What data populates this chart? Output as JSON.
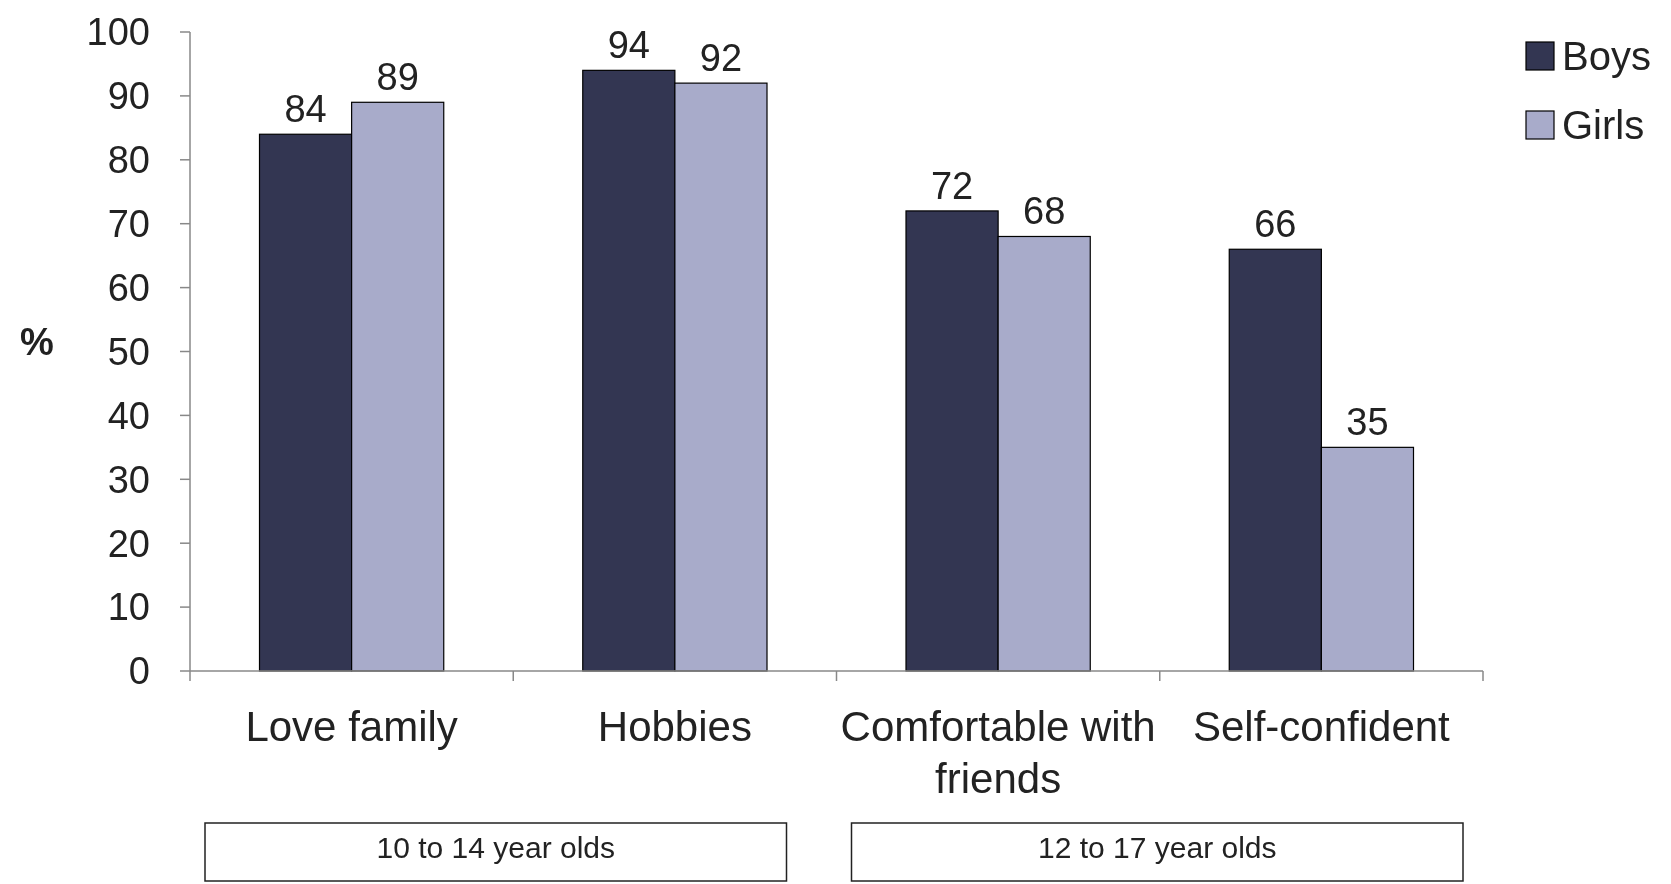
{
  "chart_data": {
    "type": "bar",
    "ylabel": "%",
    "categories": [
      "Love family",
      "Hobbies",
      "Comfortable with friends",
      "Self-confident"
    ],
    "series": [
      {
        "name": "Boys",
        "color": "#333652",
        "values": [
          84,
          94,
          72,
          66
        ]
      },
      {
        "name": "Girls",
        "color": "#a8abca",
        "values": [
          89,
          92,
          68,
          35
        ]
      }
    ],
    "ylim": [
      0,
      100
    ],
    "yticks": [
      0,
      10,
      20,
      30,
      40,
      50,
      60,
      70,
      80,
      90,
      100
    ],
    "data_labels": true,
    "legend": "top right",
    "grid": false,
    "annotations": [
      "10 to 14 year olds",
      "12 to 17 year olds"
    ]
  }
}
